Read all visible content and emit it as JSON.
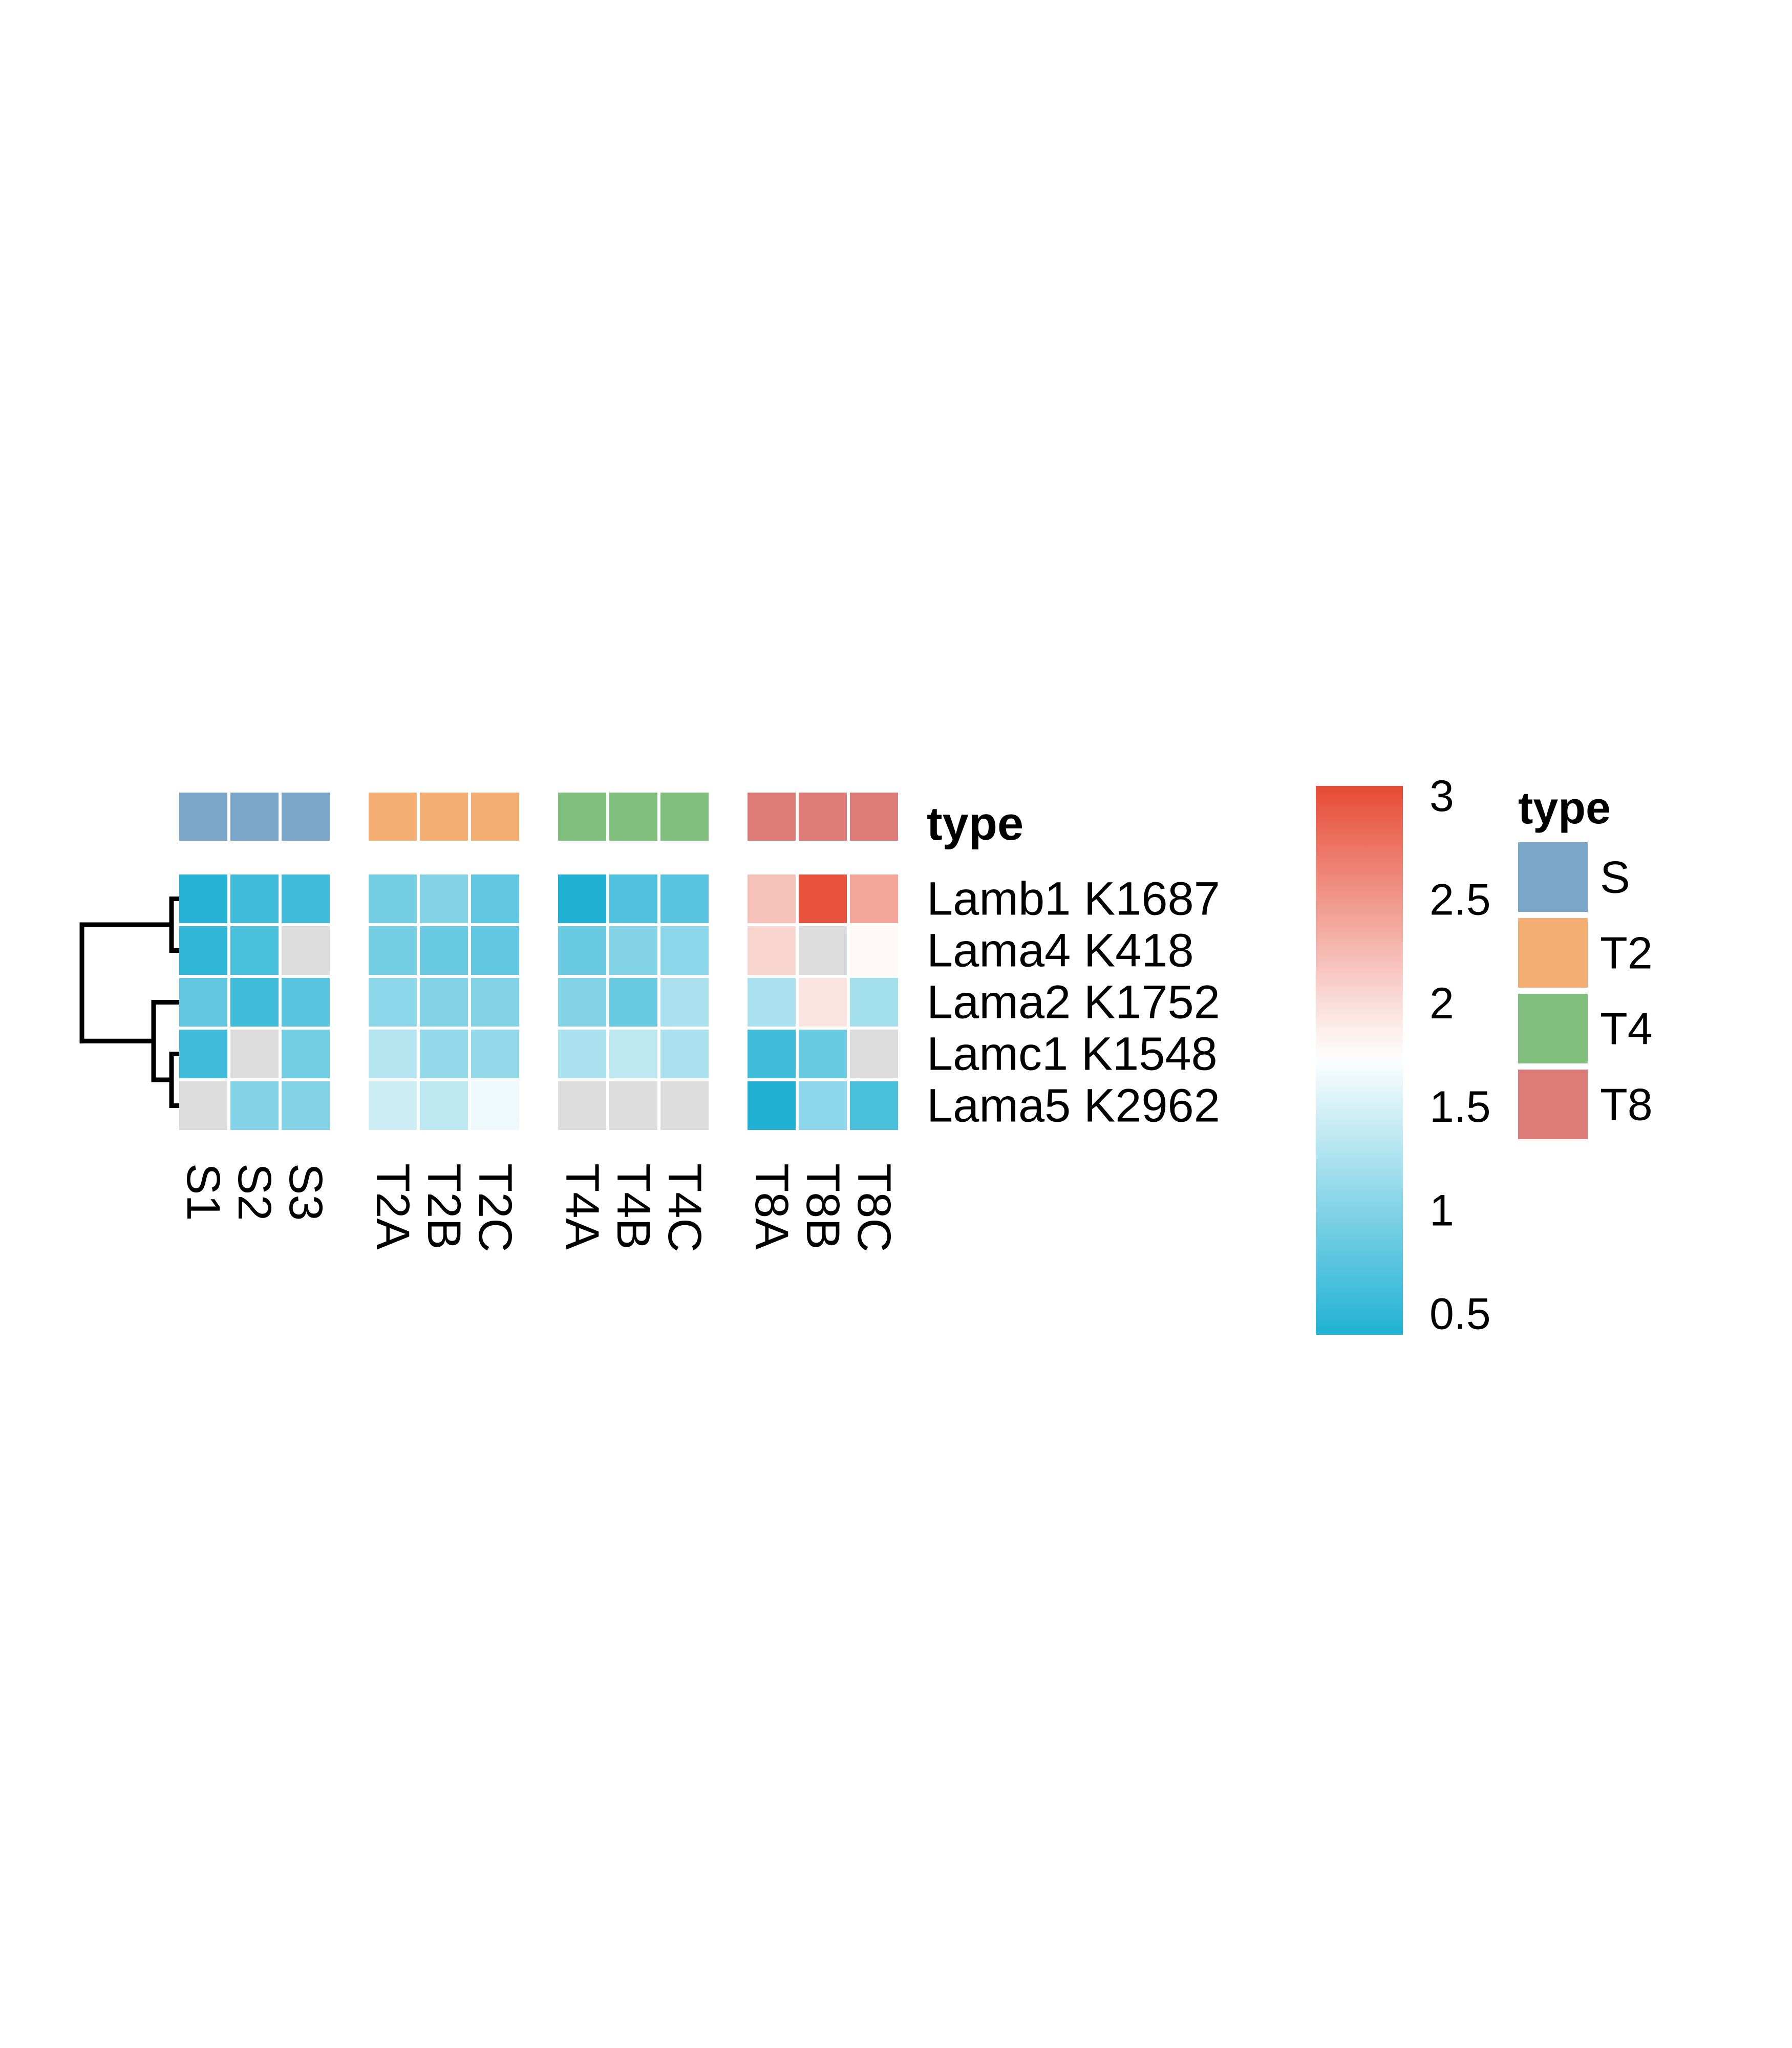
{
  "chart_data": {
    "type": "heatmap",
    "rows": [
      "Lamb1 K1687",
      "Lama4 K418",
      "Lama2 K1752",
      "Lamc1 K1548",
      "Lama5 K2962"
    ],
    "columns": [
      "S1",
      "S2",
      "S3",
      "T2A",
      "T2B",
      "T2C",
      "T4A",
      "T4B",
      "T4C",
      "T8A",
      "T8B",
      "T8C"
    ],
    "column_groups": [
      {
        "name": "S",
        "columns": [
          "S1",
          "S2",
          "S3"
        ]
      },
      {
        "name": "T2",
        "columns": [
          "T2A",
          "T2B",
          "T2C"
        ]
      },
      {
        "name": "T4",
        "columns": [
          "T4A",
          "T4B",
          "T4C"
        ]
      },
      {
        "name": "T8",
        "columns": [
          "T8A",
          "T8B",
          "T8C"
        ]
      }
    ],
    "values": [
      [
        0.45,
        0.6,
        0.6,
        0.9,
        1.0,
        0.8,
        0.4,
        0.7,
        0.75,
        2.2,
        3.0,
        2.4
      ],
      [
        0.5,
        0.65,
        null,
        0.9,
        0.85,
        0.8,
        0.85,
        1.0,
        1.05,
        2.05,
        null,
        1.8
      ],
      [
        0.8,
        0.6,
        0.75,
        1.05,
        1.0,
        1.0,
        1.0,
        0.85,
        1.25,
        1.25,
        1.95,
        1.2
      ],
      [
        0.6,
        null,
        0.9,
        1.3,
        1.1,
        1.1,
        1.25,
        1.35,
        1.25,
        0.6,
        0.85,
        null
      ],
      [
        null,
        1.0,
        1.0,
        1.45,
        1.35,
        1.65,
        null,
        null,
        null,
        0.35,
        1.05,
        0.65
      ]
    ],
    "color_scale": {
      "min": 0.4,
      "mid": 1.75,
      "max": 3.05,
      "low": "#1fb0d3",
      "mid_color": "#ffffff",
      "high": "#e64b35",
      "na": "#dcdcdc"
    },
    "legend_ticks": [
      "0.5",
      "1",
      "1.5",
      "2",
      "2.5",
      "3"
    ],
    "legend_tick_values": [
      0.5,
      1,
      1.5,
      2,
      2.5,
      3
    ],
    "annotation": {
      "title": "type",
      "legend_title": "type",
      "colors": {
        "S": "#7aa6c9",
        "T2": "#f4ae72",
        "T4": "#80be7c",
        "T8": "#dd7b79"
      }
    },
    "dendrogram": {
      "order": [
        "Lamb1 K1687",
        "Lama4 K418",
        "Lama2 K1752",
        "Lamc1 K1548",
        "Lama5 K2962"
      ],
      "merges": [
        [
          "Lamb1 K1687",
          "Lama4 K418"
        ],
        [
          "Lamc1 K1548",
          "Lama5 K2962"
        ],
        [
          "Lama2 K1752",
          "Lamc1 K1548+Lama5 K2962"
        ],
        [
          "Lamb1 K1687+Lama4 K418",
          "Lama2 K1752+Lamc1 K1548+Lama5 K2962"
        ]
      ]
    }
  }
}
